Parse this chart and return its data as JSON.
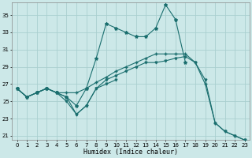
{
  "xlabel": "Humidex (Indice chaleur)",
  "xlim": [
    -0.5,
    23.5
  ],
  "ylim": [
    20.5,
    36.5
  ],
  "yticks": [
    21,
    23,
    25,
    27,
    29,
    31,
    33,
    35
  ],
  "xticks": [
    0,
    1,
    2,
    3,
    4,
    5,
    6,
    7,
    8,
    9,
    10,
    11,
    12,
    13,
    14,
    15,
    16,
    17,
    18,
    19,
    20,
    21,
    22,
    23
  ],
  "background_color": "#cce8e8",
  "grid_color": "#aacfcf",
  "line_color": "#1a6e6e",
  "s1_x": [
    0,
    1,
    2,
    3,
    4,
    5,
    6,
    7,
    8,
    9,
    10,
    11,
    12,
    13,
    14,
    15,
    16,
    17
  ],
  "s1_y": [
    26.5,
    25.5,
    26.0,
    26.5,
    26.0,
    25.5,
    24.5,
    26.5,
    30.0,
    34.0,
    33.5,
    33.0,
    32.5,
    32.5,
    33.5,
    36.2,
    34.5,
    29.5
  ],
  "s1_marker": "*",
  "s2_x": [
    0,
    1,
    2,
    3,
    4,
    5,
    6,
    7,
    8,
    9,
    10
  ],
  "s2_y": [
    26.5,
    25.5,
    26.0,
    26.5,
    26.0,
    25.0,
    23.5,
    24.5,
    26.5,
    27.0,
    27.5
  ],
  "s2_marker": "v",
  "s3_x": [
    0,
    1,
    2,
    3,
    4,
    5,
    6,
    7,
    8,
    9,
    10,
    11,
    12,
    13,
    14,
    15,
    16,
    17,
    18,
    19,
    20,
    21,
    22,
    23
  ],
  "s3_y": [
    26.5,
    25.5,
    26.0,
    26.5,
    26.0,
    25.5,
    23.5,
    24.5,
    26.5,
    27.5,
    28.0,
    28.5,
    29.0,
    29.5,
    29.5,
    29.7,
    30.0,
    30.2,
    29.5,
    27.5,
    22.5,
    21.5,
    21.0,
    20.5
  ],
  "s3_marker": "v",
  "s4_x": [
    0,
    1,
    2,
    3,
    4,
    5,
    6,
    7,
    8,
    9,
    10,
    11,
    12,
    13,
    14,
    15,
    16,
    17,
    18,
    19,
    20,
    21,
    22,
    23
  ],
  "s4_y": [
    26.5,
    25.5,
    26.0,
    26.5,
    26.0,
    26.0,
    26.0,
    26.5,
    27.2,
    27.8,
    28.5,
    29.0,
    29.5,
    30.0,
    30.5,
    30.5,
    30.5,
    30.5,
    29.5,
    27.0,
    22.5,
    21.5,
    21.0,
    20.5
  ],
  "s4_marker": "+",
  "lw": 0.8,
  "ms": 2.0
}
